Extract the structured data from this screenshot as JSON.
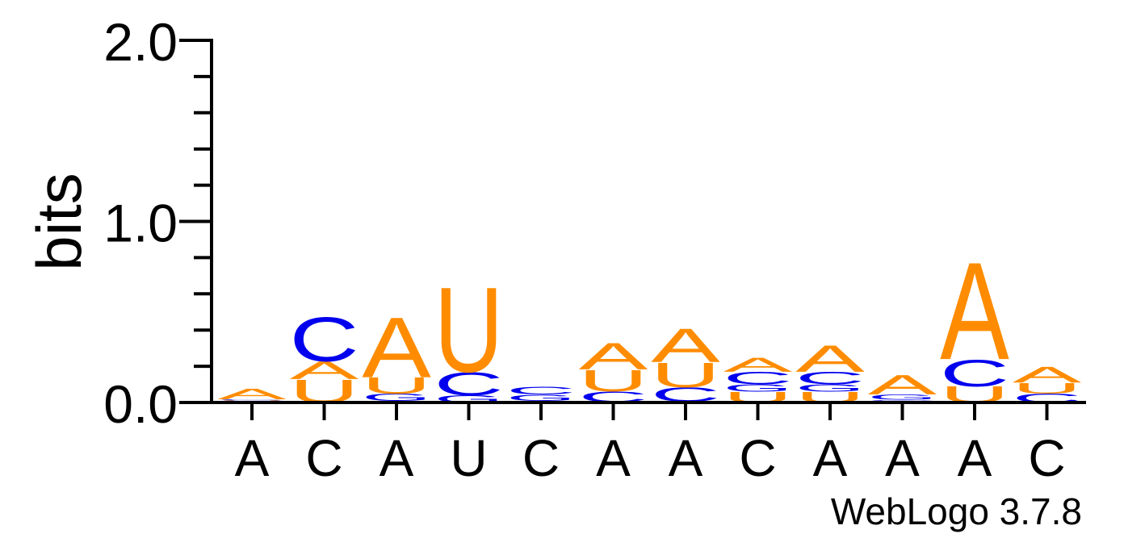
{
  "chart_data": {
    "type": "sequence-logo",
    "ylabel": "bits",
    "ylim": [
      0,
      2.0
    ],
    "y_ticks": [
      {
        "value": 0.0,
        "label": "0.0"
      },
      {
        "value": 1.0,
        "label": "1.0"
      },
      {
        "value": 2.0,
        "label": "2.0"
      }
    ],
    "minor_tick_step": 0.2,
    "colors": {
      "A": "#ff8c00",
      "U": "#ff8c00",
      "C": "#0000ee",
      "G": "#0000ee"
    },
    "positions": [
      {
        "label": "A",
        "stack": [
          {
            "letter": "G",
            "bits": 0.005
          },
          {
            "letter": "U",
            "bits": 0.006
          },
          {
            "letter": "C",
            "bits": 0.007
          },
          {
            "letter": "A",
            "bits": 0.06
          }
        ]
      },
      {
        "label": "C",
        "stack": [
          {
            "letter": "U",
            "bits": 0.13
          },
          {
            "letter": "A",
            "bits": 0.1
          },
          {
            "letter": "C",
            "bits": 0.25
          }
        ]
      },
      {
        "label": "A",
        "stack": [
          {
            "letter": "C",
            "bits": 0.01
          },
          {
            "letter": "G",
            "bits": 0.04
          },
          {
            "letter": "U",
            "bits": 0.09
          },
          {
            "letter": "A",
            "bits": 0.34
          }
        ]
      },
      {
        "label": "U",
        "stack": [
          {
            "letter": "G",
            "bits": 0.04
          },
          {
            "letter": "C",
            "bits": 0.13
          },
          {
            "letter": "U",
            "bits": 0.48
          }
        ]
      },
      {
        "label": "C",
        "stack": [
          {
            "letter": "U",
            "bits": 0.005
          },
          {
            "letter": "A",
            "bits": 0.005
          },
          {
            "letter": "G",
            "bits": 0.035
          },
          {
            "letter": "C",
            "bits": 0.045
          }
        ]
      },
      {
        "label": "A",
        "stack": [
          {
            "letter": "G",
            "bits": 0.003
          },
          {
            "letter": "C",
            "bits": 0.06
          },
          {
            "letter": "U",
            "bits": 0.12
          },
          {
            "letter": "A",
            "bits": 0.15
          }
        ]
      },
      {
        "label": "A",
        "stack": [
          {
            "letter": "G",
            "bits": 0.004
          },
          {
            "letter": "C",
            "bits": 0.08
          },
          {
            "letter": "U",
            "bits": 0.14
          },
          {
            "letter": "A",
            "bits": 0.19
          }
        ]
      },
      {
        "label": "C",
        "stack": [
          {
            "letter": "U",
            "bits": 0.06
          },
          {
            "letter": "G",
            "bits": 0.04
          },
          {
            "letter": "C",
            "bits": 0.07
          },
          {
            "letter": "A",
            "bits": 0.08
          }
        ]
      },
      {
        "label": "A",
        "stack": [
          {
            "letter": "U",
            "bits": 0.06
          },
          {
            "letter": "G",
            "bits": 0.04
          },
          {
            "letter": "C",
            "bits": 0.07
          },
          {
            "letter": "A",
            "bits": 0.15
          }
        ]
      },
      {
        "label": "A",
        "stack": [
          {
            "letter": "U",
            "bits": 0.005
          },
          {
            "letter": "C",
            "bits": 0.01
          },
          {
            "letter": "G",
            "bits": 0.03
          },
          {
            "letter": "A",
            "bits": 0.11
          }
        ]
      },
      {
        "label": "A",
        "stack": [
          {
            "letter": "U",
            "bits": 0.09
          },
          {
            "letter": "C",
            "bits": 0.15
          },
          {
            "letter": "A",
            "bits": 0.55
          }
        ]
      },
      {
        "label": "C",
        "stack": [
          {
            "letter": "C",
            "bits": 0.05
          },
          {
            "letter": "U",
            "bits": 0.06
          },
          {
            "letter": "A",
            "bits": 0.09
          }
        ]
      }
    ]
  },
  "footer": {
    "credit": "WebLogo 3.7.8"
  }
}
